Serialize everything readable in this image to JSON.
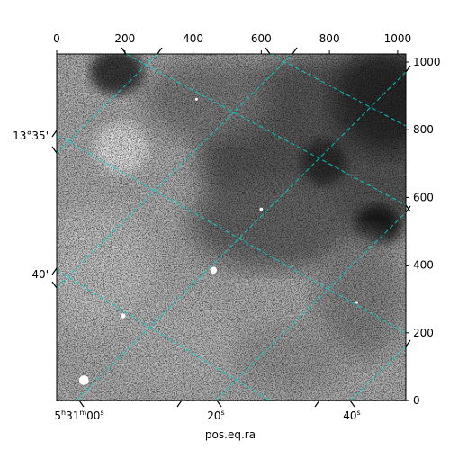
{
  "chart_data": {
    "type": "heatmap",
    "subtype": "astronomical-image-wcs-grid",
    "xlabel": "pos.eq.ra",
    "ylabel": "",
    "pixel_axis_top": {
      "range": [
        0,
        1024
      ],
      "ticks": [
        0,
        200,
        400,
        600,
        800,
        1000
      ]
    },
    "pixel_axis_right": {
      "range": [
        0,
        1024
      ],
      "ticks": [
        0,
        200,
        400,
        600,
        800,
        1000
      ]
    },
    "ra_ticks": [
      {
        "label": "5h31m00s",
        "main": "5",
        "h": "h",
        "m_val": "31",
        "m": "m",
        "s_val": "00",
        "s": "s"
      },
      {
        "label": "20s",
        "val": "20",
        "s": "s"
      },
      {
        "label": "40s",
        "val": "40",
        "s": "s"
      }
    ],
    "dec_ticks": [
      {
        "label": "13°35'"
      },
      {
        "label": "40'"
      }
    ],
    "grid_color": "#00d2d2",
    "grid": true,
    "colormap": "gray",
    "stars": [
      {
        "x": 80,
        "y": 60,
        "r": 14
      },
      {
        "x": 195,
        "y": 250,
        "r": 7
      },
      {
        "x": 460,
        "y": 385,
        "r": 10
      },
      {
        "x": 880,
        "y": 290,
        "r": 3
      },
      {
        "x": 410,
        "y": 890,
        "r": 4
      },
      {
        "x": 600,
        "y": 565,
        "r": 5
      }
    ]
  }
}
